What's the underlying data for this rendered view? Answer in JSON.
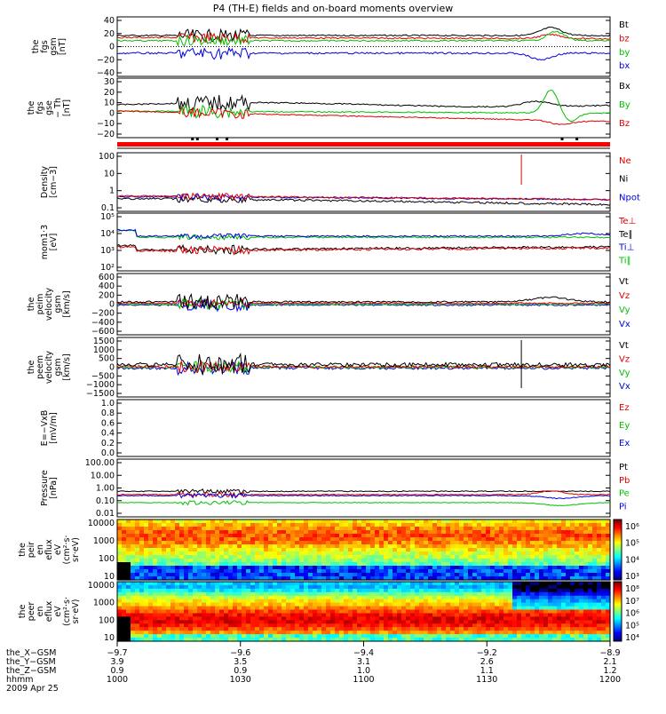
{
  "title": "P4 (TH-E) fields and on-board moments overview",
  "panels": [
    {
      "ylabel": [
        "the",
        "fgs",
        "gsm",
        "[nT]"
      ],
      "ticks": [
        "40",
        "20",
        "0",
        "−20",
        "−40"
      ],
      "legend": [
        {
          "text": "Bt",
          "color": "#000000"
        },
        {
          "text": "bz",
          "color": "#e00000"
        },
        {
          "text": "by",
          "color": "#00c000"
        },
        {
          "text": "bx",
          "color": "#0000e0"
        }
      ]
    },
    {
      "ylabel": [
        "the",
        "fgs",
        "gse",
        "− Th",
        "[nT]"
      ],
      "ticks": [
        "30",
        "20",
        "10",
        "0",
        "−10",
        "−20"
      ],
      "legend": [
        {
          "text": "Bx",
          "color": "#000000"
        },
        {
          "text": "By",
          "color": "#00c000"
        },
        {
          "text": "Bz",
          "color": "#e00000"
        }
      ]
    },
    {
      "ylabel": [
        "Density",
        "[cm−3]"
      ],
      "ticks": [
        "100",
        "10",
        "1",
        "0.1"
      ],
      "legend": [
        {
          "text": "Ne",
          "color": "#e00000"
        },
        {
          "text": "Ni",
          "color": "#000000"
        },
        {
          "text": "Npot",
          "color": "#0000e0"
        }
      ]
    },
    {
      "ylabel": [
        "mom1·3",
        "[eV]"
      ],
      "ticks": [
        "10⁵",
        "10⁴",
        "10³",
        "10²"
      ],
      "legend": [
        {
          "text": "Te⊥",
          "color": "#e00000"
        },
        {
          "text": "Te∥",
          "color": "#000000"
        },
        {
          "text": "Ti⊥",
          "color": "#0000e0"
        },
        {
          "text": "Ti∥",
          "color": "#00c000"
        }
      ]
    },
    {
      "ylabel": [
        "the",
        "peim",
        "velocity",
        "gsm",
        "[km/s]"
      ],
      "ticks": [
        "600",
        "400",
        "200",
        "0",
        "−200",
        "−400",
        "−600"
      ],
      "legend": [
        {
          "text": "Vt",
          "color": "#000000"
        },
        {
          "text": "Vz",
          "color": "#e00000"
        },
        {
          "text": "Vy",
          "color": "#00c000"
        },
        {
          "text": "Vx",
          "color": "#0000e0"
        }
      ]
    },
    {
      "ylabel": [
        "the",
        "peem",
        "velocity",
        "gsm",
        "[km/s]"
      ],
      "ticks": [
        "1500",
        "1000",
        "500",
        "0",
        "−500",
        "−1000",
        "−1500"
      ],
      "legend": [
        {
          "text": "Vt",
          "color": "#000000"
        },
        {
          "text": "Vz",
          "color": "#e00000"
        },
        {
          "text": "Vy",
          "color": "#00c000"
        },
        {
          "text": "Vx",
          "color": "#0000e0"
        }
      ]
    },
    {
      "ylabel": [
        "E=−VxB",
        "[mV/m]"
      ],
      "ticks": [
        "1.0",
        "0.8",
        "0.6",
        "0.4",
        "0.2",
        "0.0"
      ],
      "legend": [
        {
          "text": "Ez",
          "color": "#e00000"
        },
        {
          "text": "Ey",
          "color": "#00c000"
        },
        {
          "text": "Ex",
          "color": "#0000e0"
        }
      ]
    },
    {
      "ylabel": [
        "Pressure",
        "[nPa]"
      ],
      "ticks": [
        "100.00",
        "10.00",
        "1.00",
        "0.10",
        "0.01"
      ],
      "legend": [
        {
          "text": "Pt",
          "color": "#000000"
        },
        {
          "text": "Pb",
          "color": "#e00000"
        },
        {
          "text": "Pe",
          "color": "#00c000"
        },
        {
          "text": "Pi",
          "color": "#0000e0"
        }
      ]
    },
    {
      "ylabel": [
        "the",
        "peir",
        "en",
        "eflux",
        "eV",
        "(cm²·s·",
        "sr·eV)"
      ],
      "ticks": [
        "10000",
        "1000",
        "100",
        "10"
      ],
      "cbar": [
        "10⁶",
        "10⁵",
        "10⁴",
        "10³"
      ]
    },
    {
      "ylabel": [
        "the",
        "peer",
        "en",
        "eflux",
        "eV",
        "(cm²·s·",
        "sr·eV)"
      ],
      "ticks": [
        "10000",
        "1000",
        "100",
        "10"
      ],
      "cbar": [
        "10⁸",
        "10⁷",
        "10⁶",
        "10⁵",
        "10⁴"
      ]
    }
  ],
  "xaxis": {
    "rows": [
      {
        "label": "the_X−GSM",
        "values": [
          "−9.7",
          "−9.6",
          "−9.4",
          "−9.2",
          "−8.9"
        ]
      },
      {
        "label": "the_Y−GSM",
        "values": [
          "3.9",
          "3.5",
          "3.1",
          "2.6",
          "2.1"
        ]
      },
      {
        "label": "the_Z−GSM",
        "values": [
          "0.9",
          "0.9",
          "1.0",
          "1.1",
          "1.2"
        ]
      },
      {
        "label": "hhmm",
        "values": [
          "1000",
          "1030",
          "1100",
          "1130",
          "1200"
        ]
      }
    ],
    "date": "2009 Apr 25"
  },
  "colors": {
    "black": "#000000",
    "red": "#e00000",
    "green": "#00c000",
    "blue": "#0000e0"
  },
  "chart_data": {
    "type": "line",
    "title": "P4 (TH-E) fields and on-board moments overview",
    "x": [
      "1000",
      "1030",
      "1100",
      "1130",
      "1200"
    ],
    "xlabel": "hhmm",
    "series": [
      {
        "name": "Bt",
        "values": [
          18,
          20,
          19,
          17,
          17
        ]
      },
      {
        "name": "bz",
        "values": [
          16,
          14,
          12,
          15,
          13
        ]
      },
      {
        "name": "by",
        "values": [
          10,
          8,
          9,
          10,
          5
        ]
      },
      {
        "name": "bx",
        "values": [
          -10,
          -9,
          -8,
          -9,
          -17
        ]
      }
    ],
    "ylim": [
      -40,
      40
    ]
  }
}
